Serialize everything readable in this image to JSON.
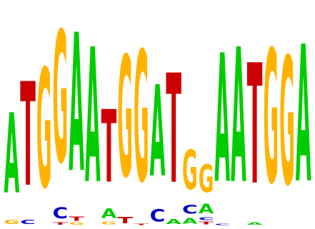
{
  "logo": {
    "alphabet": [
      "A",
      "C",
      "G",
      "T"
    ],
    "colors": {
      "A": "#00cc00",
      "C": "#0000cc",
      "G": "#ffb300",
      "T": "#cc0000"
    },
    "max_bits": 2.0,
    "positions": [
      [
        [
          "G",
          0.06
        ],
        [
          "A",
          1.16
        ]
      ],
      [
        [
          "C",
          0.06
        ],
        [
          "T",
          1.5
        ]
      ],
      [
        [
          "G",
          1.72
        ]
      ],
      [
        [
          "T",
          0.03
        ],
        [
          "C",
          0.16
        ],
        [
          "G",
          1.9
        ]
      ],
      [
        [
          "G",
          0.03
        ],
        [
          "T",
          0.06
        ],
        [
          "A",
          2.0
        ]
      ],
      [
        [
          "A",
          1.95
        ]
      ],
      [
        [
          "G",
          0.04
        ],
        [
          "A",
          0.14
        ],
        [
          "T",
          1.05
        ]
      ],
      [
        [
          "T",
          0.09
        ],
        [
          "G",
          1.75
        ]
      ],
      [
        [
          "T",
          0.02
        ],
        [
          "G",
          1.89
        ]
      ],
      [
        [
          "C",
          0.18
        ],
        [
          "A",
          1.32
        ]
      ],
      [
        [
          "A",
          0.07
        ],
        [
          "T",
          1.58
        ]
      ],
      [
        [
          "A",
          0.08
        ],
        [
          "C",
          0.13
        ],
        [
          "G",
          0.57
        ]
      ],
      [
        [
          "T",
          0.04
        ],
        [
          "C",
          0.04
        ],
        [
          "A",
          0.14
        ],
        [
          "G",
          0.4
        ]
      ],
      [
        [
          "C",
          0.02
        ],
        [
          "A",
          1.86
        ]
      ],
      [
        [
          "A",
          1.95
        ]
      ],
      [
        [
          "A",
          0.03
        ],
        [
          "T",
          1.74
        ]
      ],
      [
        [
          "G",
          1.93
        ]
      ],
      [
        [
          "G",
          1.85
        ]
      ],
      [
        [
          "A",
          1.98
        ]
      ]
    ]
  }
}
